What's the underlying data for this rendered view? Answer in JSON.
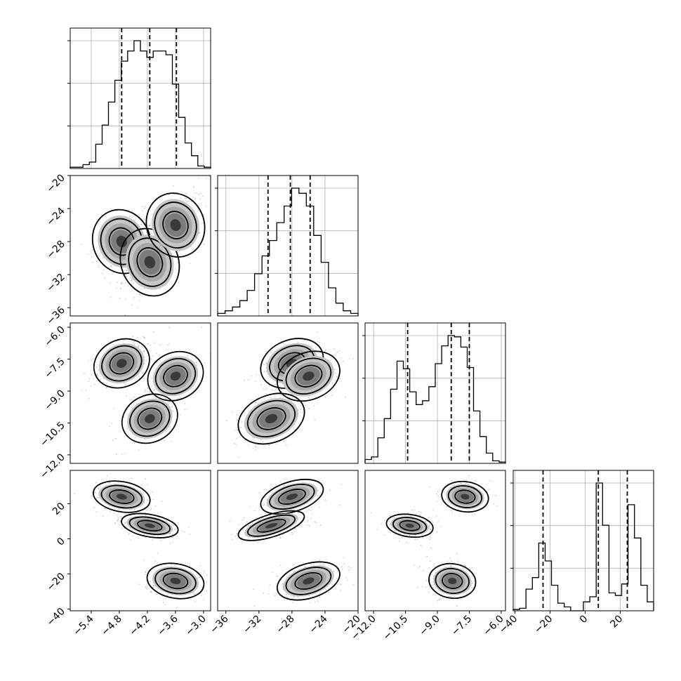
{
  "chart_data": {
    "type": "corner",
    "title": "",
    "grid": true,
    "parameters": [
      {
        "range": [
          -5.85,
          -2.85
        ],
        "ticks": [
          -5.4,
          -4.8,
          -4.2,
          -3.6,
          -3.0
        ],
        "tick_labels": [
          "−5.4",
          "−4.8",
          "−4.2",
          "−3.6",
          "−3.0"
        ],
        "quantiles": [
          -4.75,
          -4.15,
          -3.58
        ]
      },
      {
        "range": [
          -37,
          -20
        ],
        "ticks": [
          -36,
          -32,
          -28,
          -24,
          -20
        ],
        "tick_labels": [
          "−36",
          "−32",
          "−28",
          "−24",
          "−20"
        ],
        "quantiles": [
          -30.9,
          -28.2,
          -25.8
        ]
      },
      {
        "range": [
          -12.4,
          -5.8
        ],
        "ticks": [
          -12.0,
          -10.5,
          -9.0,
          -7.5,
          -6.0
        ],
        "tick_labels": [
          "−12.0",
          "−10.5",
          "−9.0",
          "−7.5",
          "−6.0"
        ],
        "quantiles": [
          -10.4,
          -8.35,
          -7.5
        ]
      },
      {
        "range": [
          -41,
          39
        ],
        "ticks": [
          -40,
          -20,
          0,
          20
        ],
        "tick_labels": [
          "−40",
          "−20",
          "0",
          "20"
        ],
        "quantiles": [
          -24,
          7.5,
          24
        ]
      }
    ],
    "histograms": [
      [
        0.01,
        0.01,
        0.03,
        0.05,
        0.19,
        0.34,
        0.52,
        0.69,
        0.84,
        0.92,
        1.0,
        0.92,
        0.87,
        0.92,
        0.92,
        0.89,
        0.66,
        0.4,
        0.2,
        0.1,
        0.02,
        0.01
      ],
      [
        0.02,
        0.04,
        0.07,
        0.12,
        0.2,
        0.33,
        0.47,
        0.59,
        0.73,
        0.86,
        1.0,
        0.96,
        0.86,
        0.63,
        0.42,
        0.22,
        0.1,
        0.04,
        0.02
      ],
      [
        0.03,
        0.05,
        0.2,
        0.35,
        0.58,
        0.8,
        0.74,
        0.56,
        0.46,
        0.49,
        0.6,
        0.78,
        0.92,
        1.0,
        0.99,
        0.91,
        0.75,
        0.41,
        0.21,
        0.08,
        0.02,
        0.01
      ],
      [
        0.01,
        0.02,
        0.17,
        0.26,
        0.53,
        0.39,
        0.2,
        0.06,
        0.03,
        0.0,
        0.0,
        0.07,
        0.11,
        1.0,
        0.67,
        0.14,
        0.12,
        0.21,
        0.83,
        0.57,
        0.2,
        0.07
      ]
    ]
  }
}
